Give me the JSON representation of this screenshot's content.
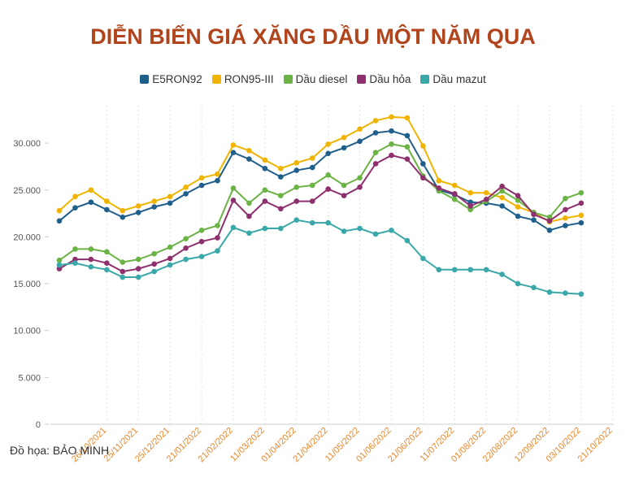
{
  "chart_data": {
    "type": "line",
    "title": "DIỄN BIẾN GIÁ XĂNG DẦU MỘT NĂM QUA",
    "source": "Đồ họa: BẢO MINH",
    "categories": [
      null,
      null,
      null,
      "26/10/2021",
      null,
      "25/11/2021",
      null,
      "25/12/2021",
      null,
      "21/01/2022",
      null,
      "21/02/2022",
      null,
      "11/03/2022",
      null,
      "01/04/2022",
      null,
      "21/04/2022",
      null,
      "11/05/2022",
      null,
      "01/06/2022",
      null,
      "21/06/2022",
      null,
      "11/07/2022",
      null,
      "01/08/2022",
      null,
      "22/08/2022",
      null,
      "12/09/2022",
      null,
      "03/10/2022",
      null,
      "21/10/2022"
    ],
    "series": [
      {
        "name": "E5RON92",
        "color": "#1f5f8b",
        "values": [
          21700,
          23100,
          23700,
          22900,
          22100,
          22600,
          23200,
          23600,
          24600,
          25500,
          26000,
          29000,
          28300,
          27300,
          26400,
          27100,
          27400,
          28900,
          29500,
          30200,
          31100,
          31300,
          30800,
          27800,
          25000,
          24500,
          23700,
          23600,
          23300,
          22200,
          21800,
          20700,
          21200,
          21500,
          null,
          null
        ]
      },
      {
        "name": "RON95-III",
        "color": "#f0b400",
        "values": [
          22800,
          24300,
          25000,
          23800,
          22800,
          23300,
          23800,
          24300,
          25300,
          26300,
          26700,
          29800,
          29200,
          28200,
          27300,
          27900,
          28400,
          29900,
          30600,
          31500,
          32400,
          32800,
          32700,
          29700,
          26000,
          25500,
          24700,
          24700,
          24200,
          23200,
          22600,
          21600,
          22000,
          22300,
          null,
          null
        ]
      },
      {
        "name": "Dầu diesel",
        "color": "#6ab344",
        "values": [
          17500,
          18700,
          18700,
          18400,
          17300,
          17600,
          18200,
          18900,
          19800,
          20700,
          21200,
          25200,
          23600,
          25000,
          24400,
          25300,
          25500,
          26600,
          25500,
          26300,
          29000,
          29900,
          29600,
          26500,
          24900,
          24000,
          22900,
          23800,
          24900,
          23900,
          22600,
          22100,
          24100,
          24700,
          null,
          null
        ]
      },
      {
        "name": "Dầu hỏa",
        "color": "#8e2f6e",
        "values": [
          16600,
          17600,
          17600,
          17200,
          16300,
          16600,
          17100,
          17700,
          18800,
          19500,
          19900,
          23900,
          22200,
          23800,
          23000,
          23800,
          23800,
          25100,
          24400,
          25300,
          27800,
          28700,
          28300,
          26300,
          25200,
          24600,
          23300,
          24000,
          25400,
          24400,
          22400,
          21700,
          22900,
          23600,
          null,
          null
        ]
      },
      {
        "name": "Dầu mazut",
        "color": "#3aa8a8",
        "values": [
          17000,
          17200,
          16800,
          16500,
          15700,
          15700,
          16300,
          17000,
          17600,
          17900,
          18500,
          21000,
          20400,
          20900,
          20900,
          21800,
          21500,
          21500,
          20600,
          20900,
          20300,
          20700,
          19600,
          17700,
          16500,
          16500,
          16500,
          16500,
          16000,
          15000,
          14600,
          14100,
          14000,
          13900,
          null,
          null
        ]
      }
    ],
    "ylim": [
      0,
      34000
    ],
    "yticks": [
      0,
      {
        "value": 5000,
        "label": "5.000"
      },
      {
        "value": 10000,
        "label": "10.000"
      },
      {
        "value": 15000,
        "label": "15.000"
      },
      {
        "value": 20000,
        "label": "20.000"
      },
      {
        "value": 25000,
        "label": "25.000"
      },
      {
        "value": 30000,
        "label": "30.000"
      }
    ],
    "grid": true
  }
}
